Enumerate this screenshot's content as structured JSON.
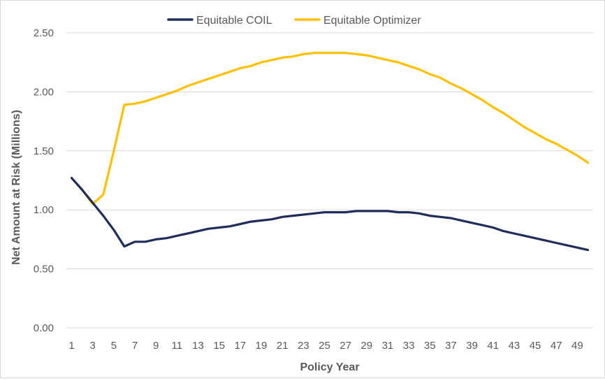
{
  "chart_data": {
    "type": "line",
    "title": "",
    "xlabel": "Policy Year",
    "ylabel": "Net Amount at Risk (Millions)",
    "ylim": [
      0,
      2.5
    ],
    "yticks": [
      "0.00",
      "0.50",
      "1.00",
      "1.50",
      "2.00",
      "2.50"
    ],
    "xtick_labels": [
      "1",
      "3",
      "5",
      "7",
      "9",
      "11",
      "13",
      "15",
      "17",
      "19",
      "21",
      "23",
      "25",
      "27",
      "29",
      "31",
      "33",
      "35",
      "37",
      "39",
      "41",
      "43",
      "45",
      "47",
      "49"
    ],
    "grid": "horizontal",
    "legend_position": "top",
    "x": [
      1,
      2,
      3,
      4,
      5,
      6,
      7,
      8,
      9,
      10,
      11,
      12,
      13,
      14,
      15,
      16,
      17,
      18,
      19,
      20,
      21,
      22,
      23,
      24,
      25,
      26,
      27,
      28,
      29,
      30,
      31,
      32,
      33,
      34,
      35,
      36,
      37,
      38,
      39,
      40,
      41,
      42,
      43,
      44,
      45,
      46,
      47,
      48,
      49,
      50
    ],
    "series": [
      {
        "name": "Equitable COIL",
        "color": "#1f2d5a",
        "values": [
          1.27,
          1.17,
          1.06,
          0.95,
          0.83,
          0.69,
          0.73,
          0.73,
          0.75,
          0.76,
          0.78,
          0.8,
          0.82,
          0.84,
          0.85,
          0.86,
          0.88,
          0.9,
          0.91,
          0.92,
          0.94,
          0.95,
          0.96,
          0.97,
          0.98,
          0.98,
          0.98,
          0.99,
          0.99,
          0.99,
          0.99,
          0.98,
          0.98,
          0.97,
          0.95,
          0.94,
          0.93,
          0.91,
          0.89,
          0.87,
          0.85,
          0.82,
          0.8,
          0.78,
          0.76,
          0.74,
          0.72,
          0.7,
          0.68,
          0.66
        ]
      },
      {
        "name": "Equitable Optimizer",
        "color": "#ffc000",
        "values": [
          1.27,
          1.17,
          1.05,
          1.13,
          1.5,
          1.89,
          1.9,
          1.92,
          1.95,
          1.98,
          2.01,
          2.05,
          2.08,
          2.11,
          2.14,
          2.17,
          2.2,
          2.22,
          2.25,
          2.27,
          2.29,
          2.3,
          2.32,
          2.33,
          2.33,
          2.33,
          2.33,
          2.32,
          2.31,
          2.29,
          2.27,
          2.25,
          2.22,
          2.19,
          2.15,
          2.12,
          2.07,
          2.03,
          1.98,
          1.93,
          1.87,
          1.82,
          1.76,
          1.7,
          1.65,
          1.6,
          1.56,
          1.51,
          1.46,
          1.4
        ]
      }
    ]
  }
}
